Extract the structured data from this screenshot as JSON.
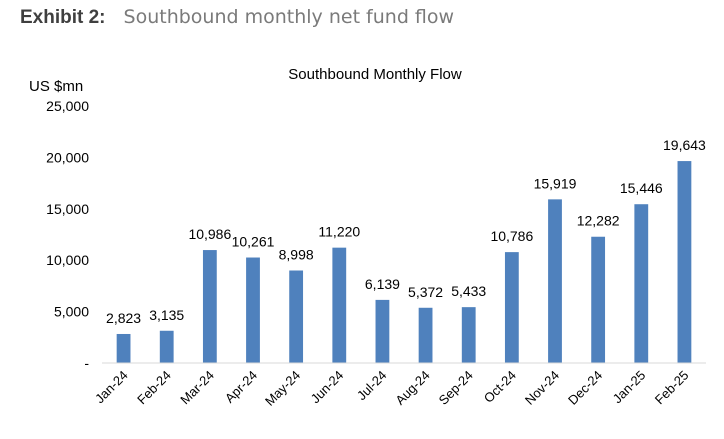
{
  "header": {
    "exhibit_label": "Exhibit 2:",
    "exhibit_title": "Southbound monthly net fund flow"
  },
  "chart_data": {
    "type": "bar",
    "title": "Southbound Monthly Flow",
    "ylabel": "US $mn",
    "xlabel": "",
    "categories": [
      "Jan-24",
      "Feb-24",
      "Mar-24",
      "Apr-24",
      "May-24",
      "Jun-24",
      "Jul-24",
      "Aug-24",
      "Sep-24",
      "Oct-24",
      "Nov-24",
      "Dec-24",
      "Jan-25",
      "Feb-25"
    ],
    "values": [
      2823,
      3135,
      10986,
      10261,
      8998,
      11220,
      6139,
      5372,
      5433,
      10786,
      15919,
      12282,
      15446,
      19643
    ],
    "data_labels": [
      "2,823",
      "3,135",
      "10,986",
      "10,261",
      "8,998",
      "11,220",
      "6,139",
      "5,372",
      "5,433",
      "10,786",
      "15,919",
      "12,282",
      "15,446",
      "19,643"
    ],
    "ylim": [
      0,
      25000
    ],
    "yticks": [
      0,
      5000,
      10000,
      15000,
      20000,
      25000
    ],
    "ytick_labels": [
      "-",
      "5,000",
      "10,000",
      "15,000",
      "20,000",
      "25,000"
    ],
    "grid": false,
    "legend": "none",
    "bar_color": "#4f81bd",
    "axis_color": "#d9d9d9",
    "text_color": "#000000"
  }
}
